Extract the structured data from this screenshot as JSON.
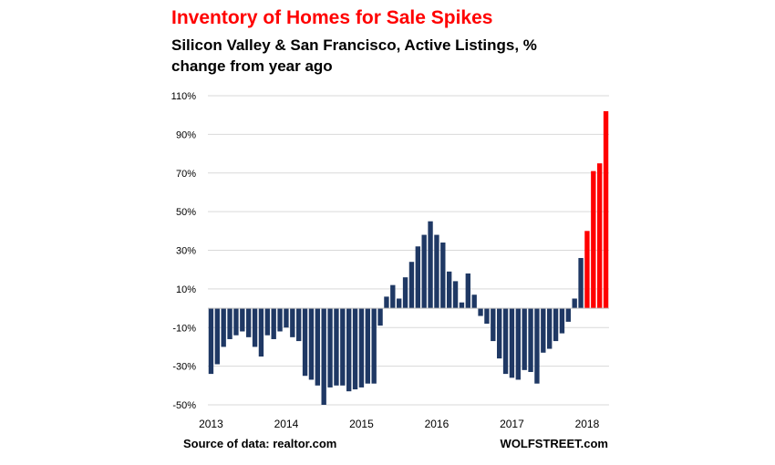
{
  "colors": {
    "title": "#ff0000",
    "bar_default": "#1f3864",
    "bar_highlight": "#ff0000",
    "grid": "#d9d9d9"
  },
  "chart_data": {
    "type": "bar",
    "title": "Inventory of Homes for Sale Spikes",
    "subtitle": "Silicon Valley & San Francisco, Active Listings, % change from year ago",
    "ylim": [
      -52,
      110
    ],
    "yticks": [
      110,
      90,
      70,
      50,
      30,
      10,
      -10,
      -30,
      -50
    ],
    "ytick_labels": [
      "110%",
      "90%",
      "70%",
      "50%",
      "30%",
      "10%",
      "-10%",
      "-30%",
      "-50%"
    ],
    "grid": true,
    "xtick_labels": [
      "2013",
      "2014",
      "2015",
      "2016",
      "2017",
      "2018"
    ],
    "series": [
      {
        "values": [
          -34,
          -29,
          -20,
          -16,
          -14,
          -12,
          -15,
          -20,
          -25,
          -14,
          -16,
          -12,
          -10,
          -15,
          -17,
          -35,
          -37,
          -40,
          -50,
          -41,
          -40,
          -40,
          -43,
          -42,
          -41,
          -39,
          -39,
          -9,
          6,
          12,
          5,
          16,
          24,
          32,
          38,
          45,
          38,
          34,
          19,
          14,
          3,
          18,
          7,
          -4,
          -8,
          -17,
          -26,
          -34,
          -36,
          -37,
          -32,
          -33,
          -39,
          -23,
          -21,
          -17,
          -13,
          -7,
          5,
          26,
          40,
          71,
          75,
          102
        ],
        "highlight_from_index": 60
      }
    ]
  },
  "footer": {
    "source": "Source of data: realtor.com",
    "brand": "WOLFSTREET.com"
  }
}
